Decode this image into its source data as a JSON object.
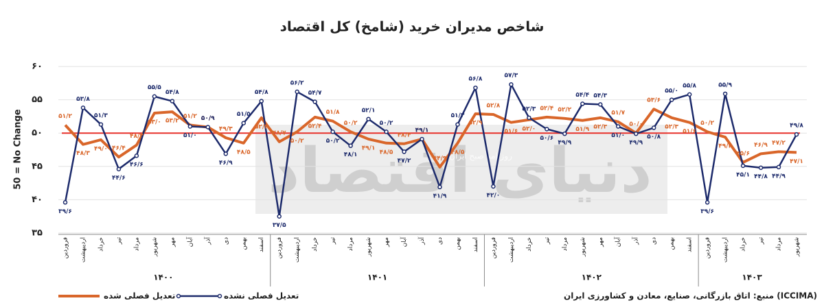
{
  "chart_data": {
    "type": "line",
    "title": "شاخص مدیران خرید (شامخ) کل اقتصاد",
    "y_label": "50 = No Change",
    "source": "منبع: اتاق بازرگانی، صنایع، معادن و کشاورزی ایران (ICCIMA)",
    "watermark": "دنیای اقتصاد",
    "watermark_tagline": "روزنامه صبح ایران",
    "categories": [
      "فروردین",
      "اردیبهشت",
      "خرداد",
      "تیر",
      "مرداد",
      "شهریور",
      "مهر",
      "آبان",
      "آذر",
      "دی",
      "بهمن",
      "اسفند",
      "فروردین",
      "اردیبهشت",
      "خرداد",
      "تیر",
      "مرداد",
      "شهریور",
      "مهر",
      "آبان",
      "آذر",
      "دی",
      "بهمن",
      "اسفند",
      "فروردین",
      "اردیبهشت",
      "خرداد",
      "تیر",
      "مرداد",
      "شهریور",
      "مهر",
      "آبان",
      "آذر",
      "دی",
      "بهمن",
      "اسفند",
      "فروردین",
      "اردیبهشت",
      "خرداد",
      "تیر",
      "مرداد",
      "شهریور"
    ],
    "groups": [
      "۱۴۰۰",
      "۱۴۰۱",
      "۱۴۰۲",
      "۱۴۰۳"
    ],
    "ylim": [
      35,
      60
    ],
    "yticks": [
      {
        "value": 35,
        "label": "۳۵"
      },
      {
        "value": 40,
        "label": "۴۰"
      },
      {
        "value": 45,
        "label": "۴۵"
      },
      {
        "value": 50,
        "label": "۵۰"
      },
      {
        "value": 55,
        "label": "۵۵"
      },
      {
        "value": 60,
        "label": "۶۰"
      }
    ],
    "grid": true,
    "reference_line": {
      "value": 50,
      "color": "#e8302a"
    },
    "legend": "bottom",
    "series": [
      {
        "name": "تعدیل فصلی شده",
        "color": "#d9662a",
        "markers": false,
        "values": [
          51.2,
          48.3,
          49.0,
          46.4,
          48.2,
          53.0,
          53.2,
          51.2,
          50.9,
          49.3,
          48.5,
          52.3,
          48.7,
          50.2,
          52.4,
          51.8,
          50.2,
          49.1,
          48.5,
          48.4,
          49.1,
          44.9,
          48.5,
          52.9,
          52.8,
          51.6,
          52.0,
          52.4,
          52.2,
          51.9,
          52.3,
          51.7,
          50.0,
          53.6,
          52.3,
          51.6,
          50.2,
          49.4,
          45.6,
          46.9,
          47.2,
          47.1
        ],
        "value_labels": [
          "۵۱/۲",
          "۴۸/۳",
          "۴۹/۰",
          "۴۶/۴",
          "۴۸/۲",
          "۵۳/۰",
          "۵۳/۲",
          "۵۱/۲",
          "۵۰/۹",
          "۴۹/۳",
          "۴۸/۵",
          "۵۲/۳",
          "۴۸/۷",
          "۵۰/۲",
          "۵۲/۴",
          "۵۱/۸",
          "۵۰/۲",
          "۴۹/۱",
          "۴۸/۵",
          "۴۸/۴",
          "۴۹/۱",
          "۴۴/۹",
          "۴۸/۵",
          "۵۲/۹",
          "۵۲/۸",
          "۵۱/۶",
          "۵۲/۰",
          "۵۲/۴",
          "۵۲/۲",
          "۵۱/۹",
          "۵۲/۳",
          "۵۱/۷",
          "۵۰/۰",
          "۵۳/۶",
          "۵۲/۳",
          "۵۱/۶",
          "۵۰/۲",
          "۴۹/۴",
          "۴۵/۶",
          "۴۶/۹",
          "۴۷/۲",
          "۴۷/۱"
        ]
      },
      {
        "name": "تعدیل فصلی نشده",
        "color": "#1c2a6b",
        "markers": true,
        "values": [
          39.6,
          53.8,
          51.3,
          44.6,
          46.6,
          55.5,
          54.8,
          51.0,
          50.9,
          46.9,
          51.5,
          54.8,
          37.5,
          56.2,
          54.7,
          50.2,
          48.1,
          52.1,
          50.2,
          47.2,
          49.1,
          41.9,
          51.3,
          56.8,
          42.0,
          57.3,
          52.3,
          50.6,
          49.9,
          54.4,
          54.3,
          51.0,
          49.9,
          50.8,
          55.0,
          55.8,
          39.6,
          55.9,
          45.1,
          44.8,
          44.9,
          49.8
        ],
        "value_labels": [
          "۳۹/۶",
          "۵۳/۸",
          "۵۱/۳",
          "۴۴/۶",
          "۴۶/۶",
          "۵۵/۵",
          "۵۴/۸",
          "۵۱/۰",
          "۵۰/۹",
          "۴۶/۹",
          "۵۱/۵",
          "۵۴/۸",
          "۳۷/۵",
          "۵۶/۲",
          "۵۴/۷",
          "۵۰/۲",
          "۴۸/۱",
          "۵۲/۱",
          "۵۰/۲",
          "۴۷/۲",
          "۴۹/۱",
          "۴۱/۹",
          "۵۱/۳",
          "۵۶/۸",
          "۴۲/۰",
          "۵۷/۳",
          "۵۲/۳",
          "۵۰/۶",
          "۴۹/۹",
          "۵۴/۴",
          "۵۴/۳",
          "۵۱/۰",
          "۴۹/۹",
          "۵۰/۸",
          "۵۵/۰",
          "۵۵/۸",
          "۳۹/۶",
          "۵۵/۹",
          "۴۵/۱",
          "۴۴/۸",
          "۴۴/۹",
          "۴۹/۸"
        ]
      }
    ]
  }
}
